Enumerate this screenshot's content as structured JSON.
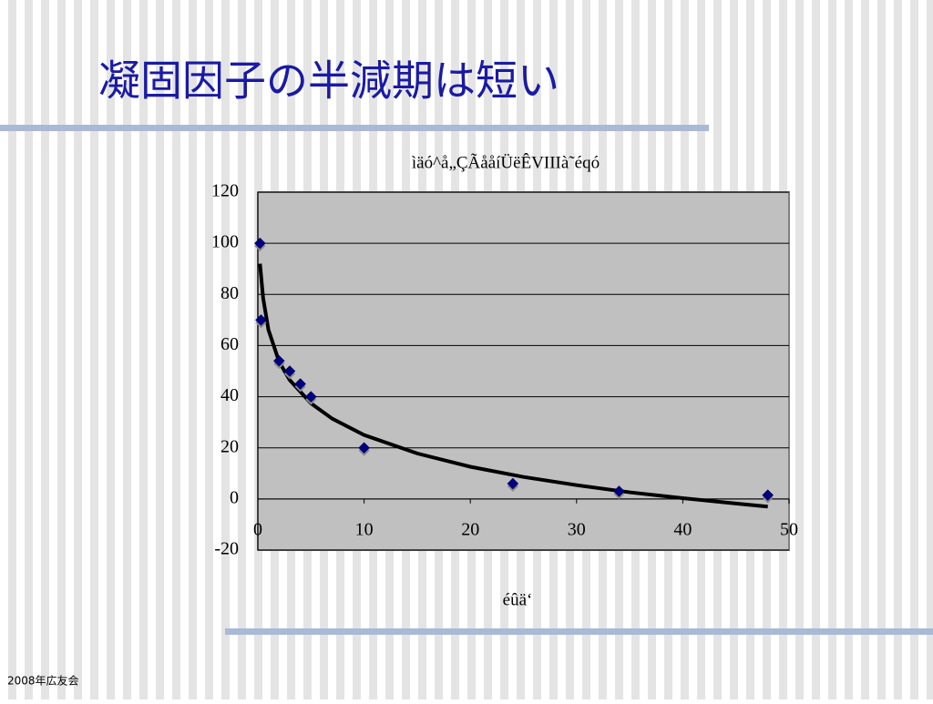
{
  "slide": {
    "title": "凝固因子の半減期は短い",
    "footer": "2008年広友会"
  },
  "chart_data": {
    "type": "scatter",
    "title": "ìäó^å„ÇÃååíÜëÊVIIIà˜éqó",
    "x_label": "éûä‘",
    "x": [
      0.2,
      0.3,
      2,
      3,
      4,
      5,
      10,
      24,
      34,
      48
    ],
    "values": [
      100,
      70,
      54,
      50,
      45,
      40,
      20,
      6,
      3,
      1.5
    ],
    "color": "#000080",
    "trendline": {
      "color": "#000000",
      "x": [
        0.2,
        0.5,
        1,
        2,
        3,
        5,
        7,
        10,
        15,
        20,
        25,
        30,
        35,
        40,
        45,
        48
      ],
      "values": [
        92,
        78.5,
        66.1,
        53.7,
        46.5,
        37.4,
        31.4,
        25,
        17.8,
        12.6,
        8.6,
        5.4,
        2.6,
        0.3,
        -1.8,
        -3
      ]
    },
    "xlim": [
      0,
      50
    ],
    "xticks": [
      0,
      10,
      20,
      30,
      40,
      50
    ],
    "ylim": [
      -20,
      120
    ],
    "yticks": [
      -20,
      0,
      20,
      40,
      60,
      80,
      100,
      120
    ],
    "grid": true
  }
}
